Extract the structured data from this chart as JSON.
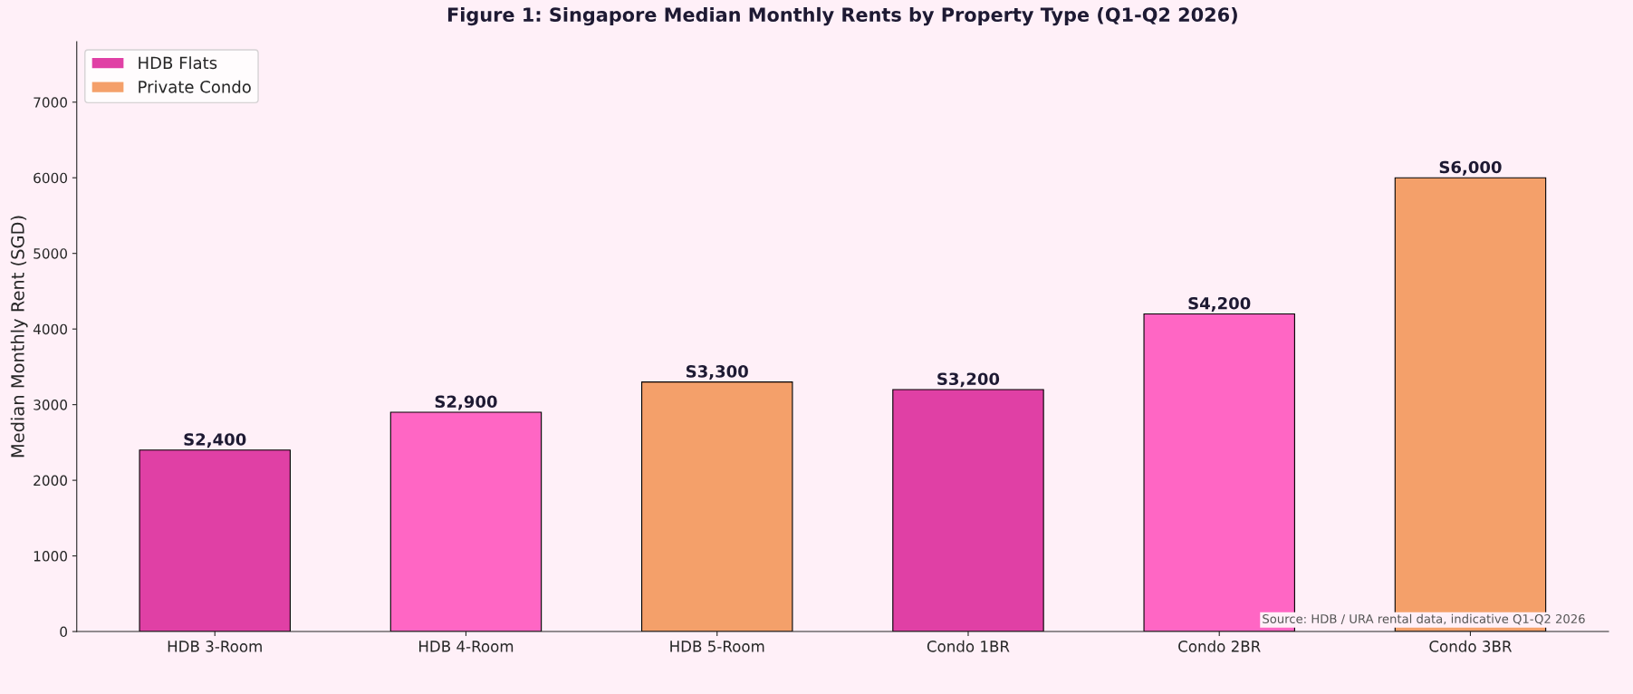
{
  "chart_data": {
    "type": "bar",
    "title": "Figure 1: Singapore Median Monthly Rents by Property Type (Q1-Q2 2026)",
    "ylabel": "Median Monthly Rent (SGD)",
    "categories": [
      "HDB 3-Room",
      "HDB 4-Room",
      "HDB 5-Room",
      "Condo 1BR",
      "Condo 2BR",
      "Condo 3BR"
    ],
    "series": [
      {
        "name": "HDB Flats",
        "color": "#e040a5",
        "values": [
          2400,
          2900,
          3300,
          null,
          null,
          null
        ],
        "colors": [
          "#e040a5",
          "#ff66c4",
          "#f4a06a",
          null,
          null,
          null
        ],
        "value_labels": [
          "S2,400",
          "S2,900",
          "S3,300",
          null,
          null,
          null
        ]
      },
      {
        "name": "Private Condo",
        "color": "#f4a06a",
        "values": [
          null,
          null,
          null,
          3200,
          4200,
          6000
        ],
        "colors": [
          null,
          null,
          null,
          "#e040a5",
          "#ff66c4",
          "#f4a06a"
        ],
        "value_labels": [
          null,
          null,
          null,
          "S3,200",
          "S4,200",
          "S6,000"
        ]
      }
    ],
    "ylim": [
      0,
      7800
    ],
    "yticks": [
      0,
      1000,
      2000,
      3000,
      4000,
      5000,
      6000,
      7000
    ],
    "grid": false,
    "legend": "top left",
    "annotations": [
      "Source: HDB / URA rental data, indicative Q1-Q2 2026"
    ]
  }
}
